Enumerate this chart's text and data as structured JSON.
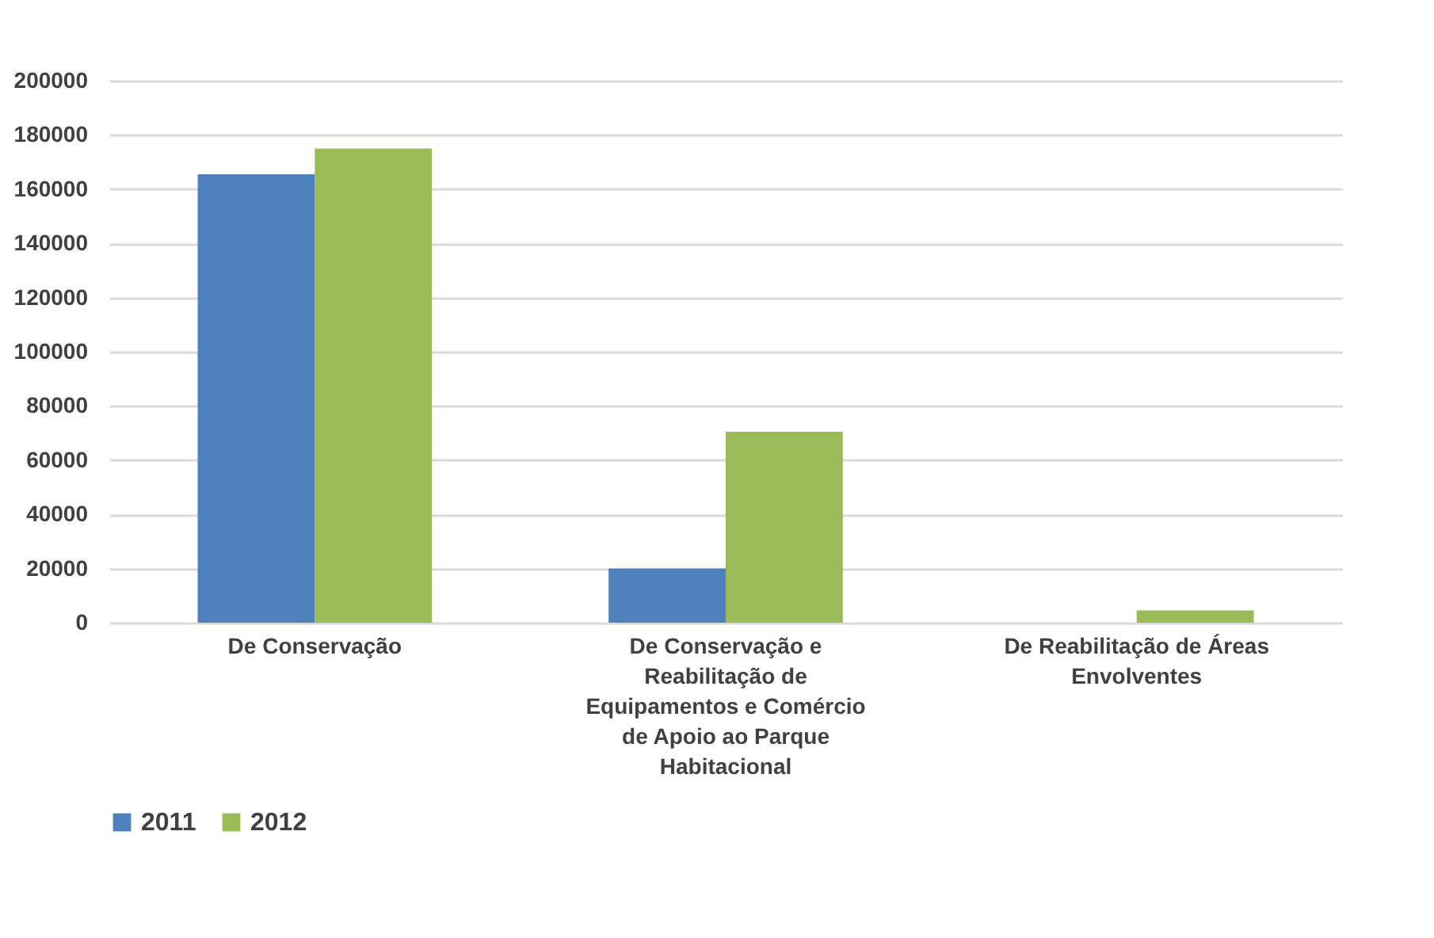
{
  "chart_data": {
    "type": "bar",
    "categories": [
      "De Conservação",
      "De Conservação e Reabilitação de Equipamentos e Comércio de Apoio ao Parque Habitacional",
      "De Reabilitação de Áreas Envolventes"
    ],
    "series": [
      {
        "name": "2011",
        "color": "#4f81bd",
        "values": [
          165500,
          20000,
          0
        ]
      },
      {
        "name": "2012",
        "color": "#9bbb59",
        "values": [
          175000,
          70500,
          4500
        ]
      }
    ],
    "ylim": [
      0,
      200000
    ],
    "yticks": [
      0,
      20000,
      40000,
      60000,
      80000,
      100000,
      120000,
      140000,
      160000,
      180000,
      200000
    ],
    "grid": "y",
    "legend": "bottom"
  }
}
